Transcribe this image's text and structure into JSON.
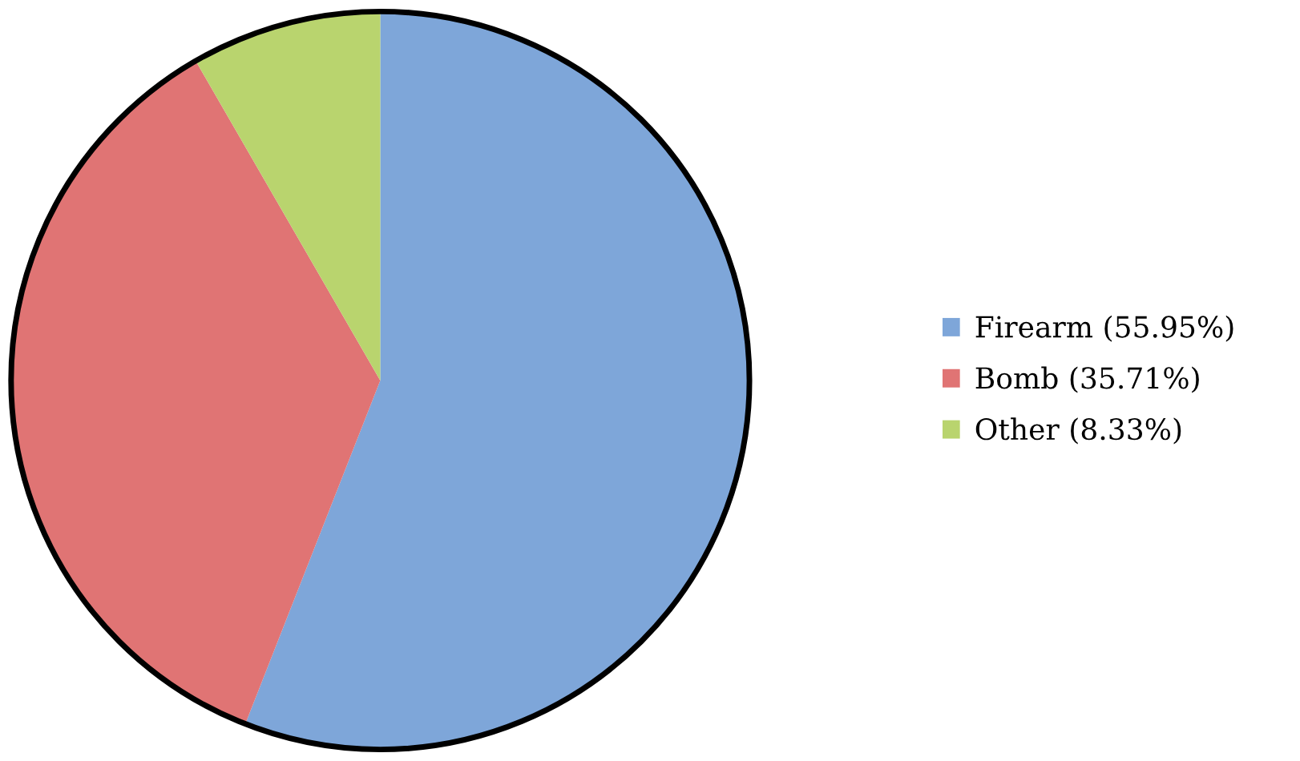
{
  "chart_data": {
    "type": "pie",
    "categories": [
      "Firearm (55.95%)",
      "Bomb (35.71%)",
      "Other (8.33%)"
    ],
    "values": [
      55.95,
      35.71,
      8.33
    ],
    "colors": [
      "#7ea6d9",
      "#e07474",
      "#b9d46e"
    ],
    "legend": "right"
  }
}
